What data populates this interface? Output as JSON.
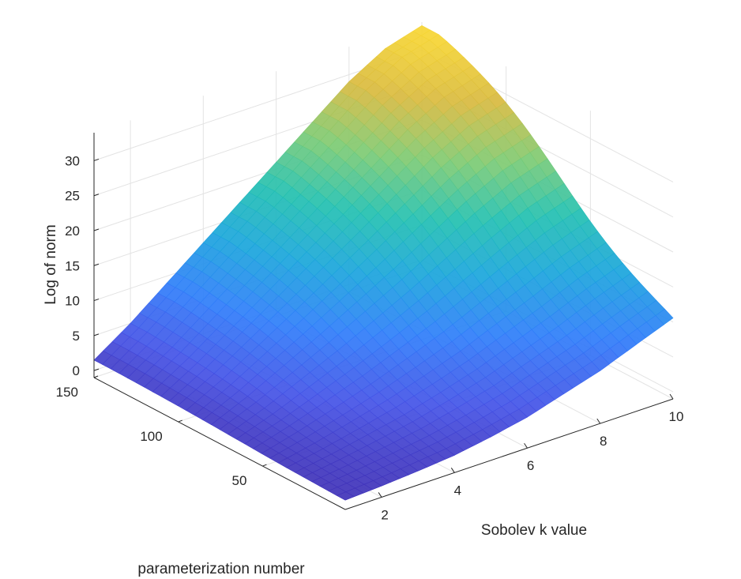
{
  "chart_data": {
    "type": "surface3d",
    "title": "",
    "xlabel": "Sobolev k value",
    "ylabel": "parameterization number",
    "zlabel": "Log of norm",
    "xlim": [
      1,
      10
    ],
    "ylim": [
      1,
      150
    ],
    "zlim": [
      -1,
      34
    ],
    "x_ticks": [
      2,
      4,
      6,
      8,
      10
    ],
    "y_ticks": [
      50,
      100,
      150
    ],
    "z_ticks": [
      0,
      5,
      10,
      15,
      20,
      25,
      30
    ],
    "grid": true,
    "colormap": "parula",
    "colors": [
      "#3e26a8",
      "#4452e6",
      "#2f7dfa",
      "#1aa5dc",
      "#22c0b0",
      "#7dcb73",
      "#d8ba3f",
      "#fbd931"
    ],
    "description_values": {
      "k": [
        1,
        2,
        3,
        4,
        5,
        6,
        7,
        8,
        9,
        10
      ],
      "peak_log_norm_at_param_150": [
        1.5,
        5,
        9,
        13,
        17,
        21,
        25,
        29,
        32,
        33.5
      ],
      "log_norm_at_param_1": [
        0.3,
        0.5,
        0.8,
        1.2,
        2,
        3,
        4.5,
        6,
        8,
        10
      ]
    }
  }
}
